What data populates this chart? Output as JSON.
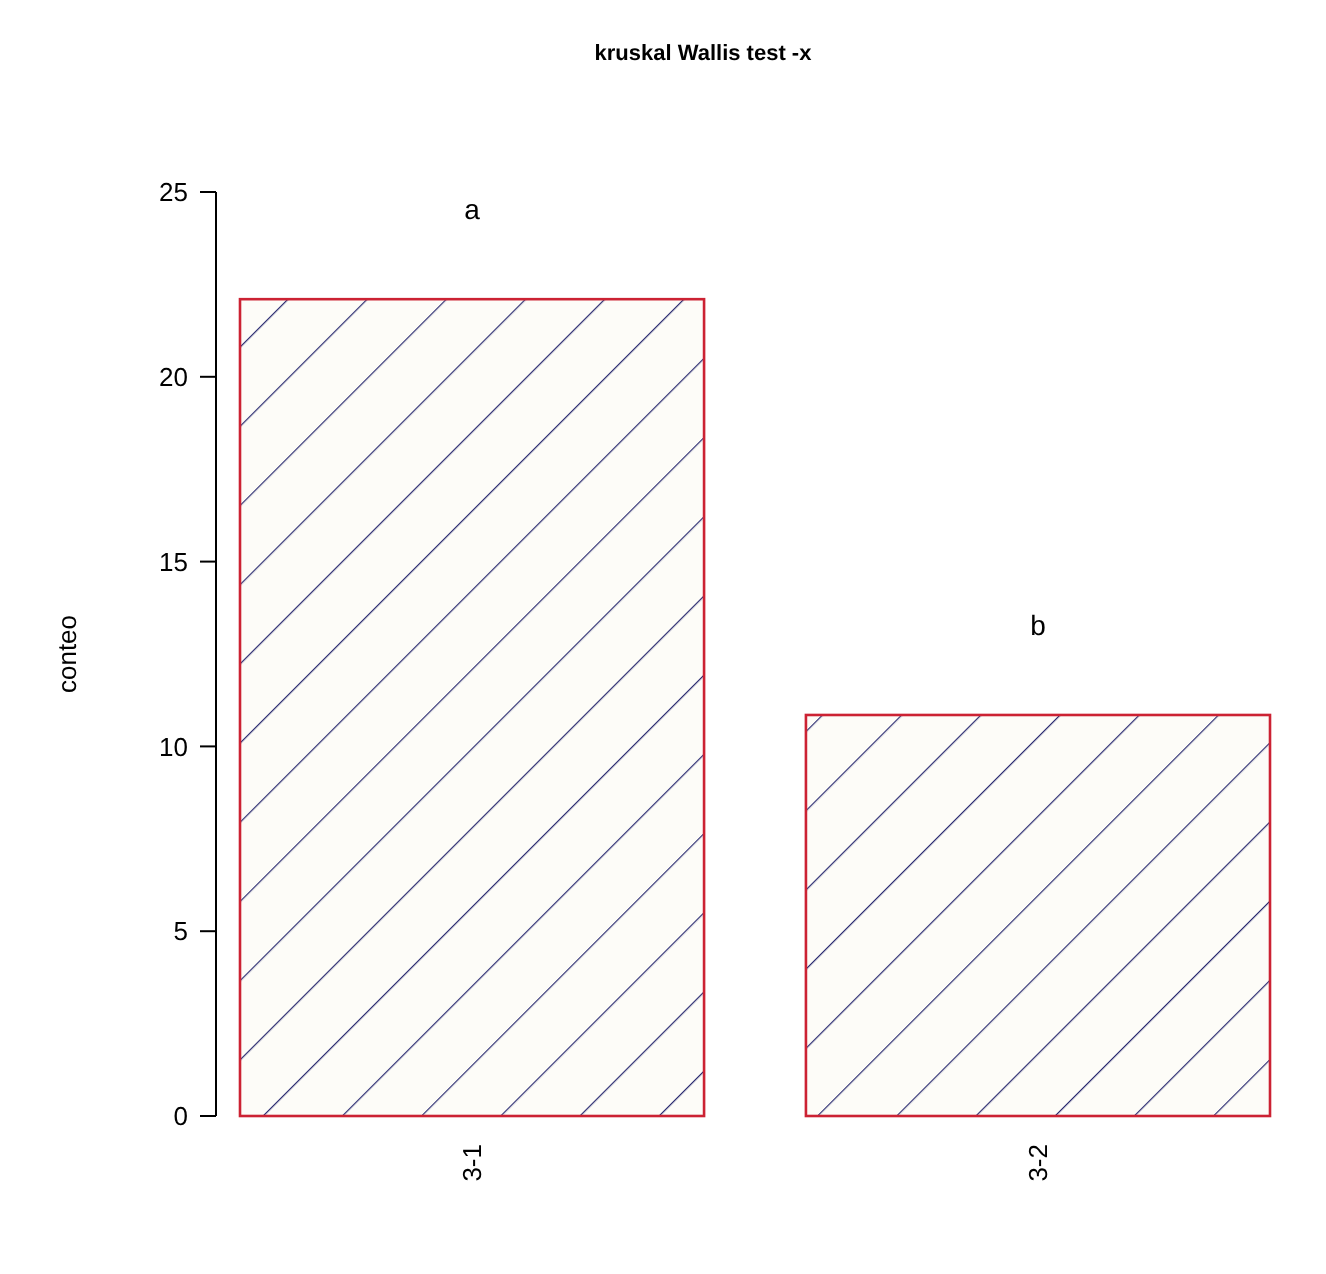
{
  "chart_data": {
    "type": "bar",
    "title": "kruskal Wallis test -x",
    "ylabel": "conteo",
    "categories": [
      "3-1",
      "3-2"
    ],
    "values": [
      22.1,
      10.85
    ],
    "color": "#cc2233",
    "ylim": [
      0,
      25
    ],
    "yticks": [
      0,
      5,
      10,
      15,
      20,
      25
    ],
    "annotations": [
      "a",
      "b"
    ]
  }
}
